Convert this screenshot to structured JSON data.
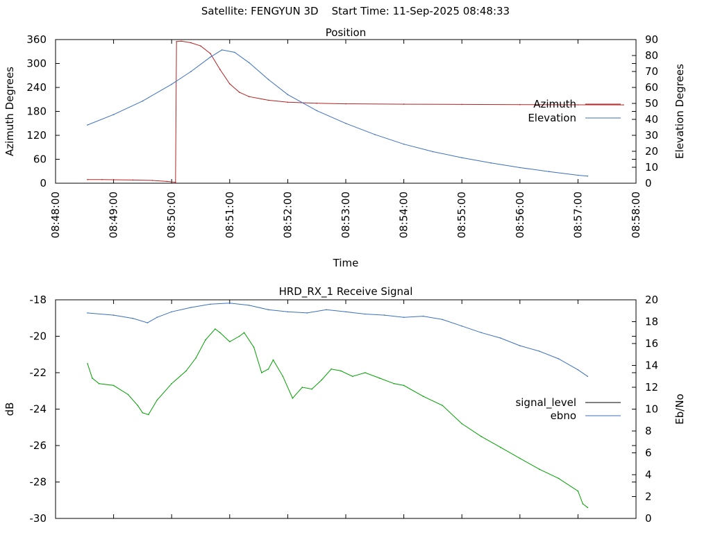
{
  "header": {
    "satellite": "Satellite: FENGYUN 3D",
    "start_time": "Start Time: 11-Sep-2025 08:48:33"
  },
  "chart_data": [
    {
      "type": "line",
      "title": "Position",
      "xlabel": "Time",
      "ylabel": "Azimuth Degrees",
      "y2label": "Elevation Degrees",
      "xticks": [
        "08:48:00",
        "08:49:00",
        "08:50:00",
        "08:51:00",
        "08:52:00",
        "08:53:00",
        "08:54:00",
        "08:55:00",
        "08:56:00",
        "08:57:00",
        "08:58:00"
      ],
      "xlim": [
        "08:48:00",
        "08:58:00"
      ],
      "ylim": [
        0,
        360
      ],
      "yticks": [
        0,
        60,
        120,
        180,
        240,
        300,
        360
      ],
      "y2lim": [
        0,
        90
      ],
      "y2ticks": [
        0,
        10,
        20,
        30,
        40,
        50,
        60,
        70,
        80,
        90
      ],
      "legend_position": "right",
      "series": [
        {
          "name": "Azimuth",
          "axis": "left",
          "color": "#b22222",
          "points": [
            [
              "08:48:33",
              9.3
            ],
            [
              "08:48:48",
              9.0
            ],
            [
              "08:49:00",
              8.7
            ],
            [
              "08:49:20",
              8.0
            ],
            [
              "08:49:40",
              6.9
            ],
            [
              "08:49:55",
              4.6
            ],
            [
              "08:50:04",
              2.5
            ],
            [
              "08:50:05",
              355.0
            ],
            [
              "08:50:10",
              356.0
            ],
            [
              "08:50:20",
              352.0
            ],
            [
              "08:50:30",
              344.0
            ],
            [
              "08:50:40",
              325.0
            ],
            [
              "08:50:50",
              285.0
            ],
            [
              "08:51:00",
              249.0
            ],
            [
              "08:51:10",
              228.0
            ],
            [
              "08:51:20",
              217.0
            ],
            [
              "08:51:40",
              208.0
            ],
            [
              "08:52:00",
              203.0
            ],
            [
              "08:52:30",
              200.5
            ],
            [
              "08:53:00",
              199.0
            ],
            [
              "08:54:00",
              198.0
            ],
            [
              "08:55:00",
              197.5
            ],
            [
              "08:56:00",
              197.0
            ],
            [
              "08:57:00",
              196.5
            ],
            [
              "08:57:47",
              196.3
            ]
          ]
        },
        {
          "name": "Elevation",
          "axis": "right",
          "color": "#3a6fbd",
          "points": [
            [
              "08:48:33",
              36.5
            ],
            [
              "08:49:00",
              43.0
            ],
            [
              "08:49:30",
              51.5
            ],
            [
              "08:50:00",
              62.0
            ],
            [
              "08:50:20",
              70.0
            ],
            [
              "08:50:40",
              79.0
            ],
            [
              "08:50:52",
              83.5
            ],
            [
              "08:51:05",
              82.0
            ],
            [
              "08:51:20",
              75.5
            ],
            [
              "08:51:40",
              65.0
            ],
            [
              "08:52:00",
              55.5
            ],
            [
              "08:52:30",
              45.5
            ],
            [
              "08:53:00",
              37.5
            ],
            [
              "08:53:30",
              30.5
            ],
            [
              "08:54:00",
              24.5
            ],
            [
              "08:54:30",
              19.8
            ],
            [
              "08:55:00",
              16.0
            ],
            [
              "08:55:30",
              12.7
            ],
            [
              "08:56:00",
              9.8
            ],
            [
              "08:56:30",
              7.3
            ],
            [
              "08:57:00",
              5.0
            ],
            [
              "08:57:10",
              4.5
            ]
          ]
        }
      ]
    },
    {
      "type": "line",
      "title": "HRD_RX_1 Receive Signal",
      "ylabel": "dB",
      "y2label": "Eb/No",
      "xlim": [
        "08:48:00",
        "08:58:00"
      ],
      "ylim": [
        -30,
        -18
      ],
      "yticks": [
        -30,
        -28,
        -26,
        -24,
        -22,
        -20,
        -18
      ],
      "y2lim": [
        0,
        20
      ],
      "y2ticks": [
        0,
        2,
        4,
        6,
        8,
        10,
        12,
        14,
        16,
        18,
        20
      ],
      "legend_position": "right",
      "series": [
        {
          "name": "signal_level",
          "axis": "left",
          "color": "#00a000",
          "legend_color": "#000000",
          "points": [
            [
              "08:48:33",
              -21.5
            ],
            [
              "08:48:38",
              -22.3
            ],
            [
              "08:48:45",
              -22.6
            ],
            [
              "08:49:00",
              -22.7
            ],
            [
              "08:49:15",
              -23.2
            ],
            [
              "08:49:25",
              -23.8
            ],
            [
              "08:49:30",
              -24.2
            ],
            [
              "08:49:36",
              -24.3
            ],
            [
              "08:49:45",
              -23.5
            ],
            [
              "08:50:00",
              -22.6
            ],
            [
              "08:50:15",
              -21.9
            ],
            [
              "08:50:25",
              -21.2
            ],
            [
              "08:50:35",
              -20.2
            ],
            [
              "08:50:45",
              -19.6
            ],
            [
              "08:50:50",
              -19.8
            ],
            [
              "08:51:00",
              -20.3
            ],
            [
              "08:51:10",
              -20.0
            ],
            [
              "08:51:15",
              -19.8
            ],
            [
              "08:51:25",
              -20.6
            ],
            [
              "08:51:33",
              -22.0
            ],
            [
              "08:51:40",
              -21.8
            ],
            [
              "08:51:45",
              -21.3
            ],
            [
              "08:51:55",
              -22.2
            ],
            [
              "08:52:05",
              -23.4
            ],
            [
              "08:52:15",
              -22.8
            ],
            [
              "08:52:25",
              -22.9
            ],
            [
              "08:52:35",
              -22.4
            ],
            [
              "08:52:45",
              -21.8
            ],
            [
              "08:52:55",
              -21.9
            ],
            [
              "08:53:07",
              -22.2
            ],
            [
              "08:53:20",
              -22.0
            ],
            [
              "08:53:35",
              -22.3
            ],
            [
              "08:53:50",
              -22.6
            ],
            [
              "08:54:00",
              -22.7
            ],
            [
              "08:54:20",
              -23.3
            ],
            [
              "08:54:40",
              -23.8
            ],
            [
              "08:55:00",
              -24.8
            ],
            [
              "08:55:20",
              -25.5
            ],
            [
              "08:55:40",
              -26.1
            ],
            [
              "08:56:00",
              -26.7
            ],
            [
              "08:56:20",
              -27.3
            ],
            [
              "08:56:40",
              -27.8
            ],
            [
              "08:57:00",
              -28.5
            ],
            [
              "08:57:05",
              -29.2
            ],
            [
              "08:57:10",
              -29.4
            ]
          ]
        },
        {
          "name": "ebno",
          "axis": "right",
          "color": "#3a6fbd",
          "points": [
            [
              "08:48:33",
              18.8
            ],
            [
              "08:49:00",
              18.6
            ],
            [
              "08:49:20",
              18.3
            ],
            [
              "08:49:35",
              17.9
            ],
            [
              "08:49:45",
              18.4
            ],
            [
              "08:50:00",
              18.9
            ],
            [
              "08:50:20",
              19.3
            ],
            [
              "08:50:40",
              19.6
            ],
            [
              "08:51:00",
              19.7
            ],
            [
              "08:51:20",
              19.5
            ],
            [
              "08:51:40",
              19.1
            ],
            [
              "08:52:00",
              18.9
            ],
            [
              "08:52:20",
              18.8
            ],
            [
              "08:52:40",
              19.1
            ],
            [
              "08:53:00",
              18.9
            ],
            [
              "08:53:20",
              18.7
            ],
            [
              "08:53:40",
              18.6
            ],
            [
              "08:54:00",
              18.4
            ],
            [
              "08:54:20",
              18.5
            ],
            [
              "08:54:40",
              18.2
            ],
            [
              "08:55:00",
              17.6
            ],
            [
              "08:55:20",
              17.0
            ],
            [
              "08:55:40",
              16.5
            ],
            [
              "08:56:00",
              15.8
            ],
            [
              "08:56:20",
              15.3
            ],
            [
              "08:56:40",
              14.6
            ],
            [
              "08:57:00",
              13.6
            ],
            [
              "08:57:10",
              13.0
            ]
          ]
        }
      ]
    }
  ]
}
